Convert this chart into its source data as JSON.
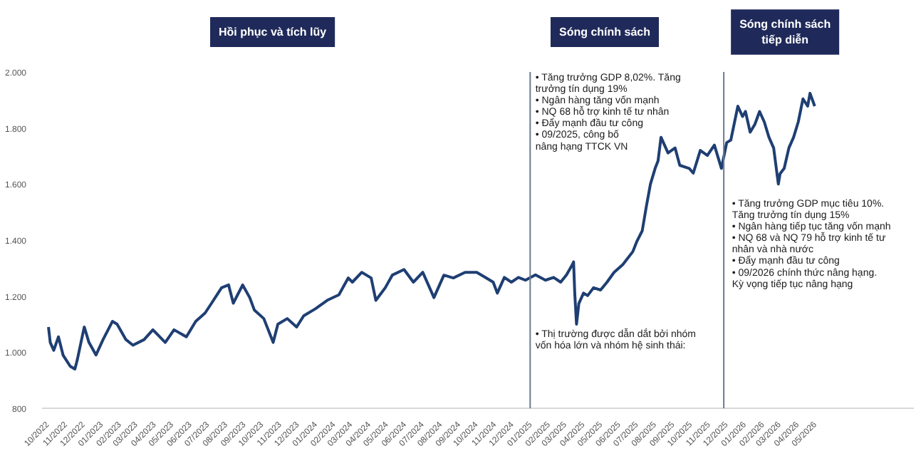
{
  "chart_data": {
    "type": "line",
    "x": [
      "2022-10-01",
      "2022-10-04",
      "2022-10-10",
      "2022-10-18",
      "2022-10-26",
      "2022-11-07",
      "2022-11-15",
      "2022-11-19",
      "2022-12-01",
      "2022-12-09",
      "2022-12-21",
      "2023-01-02",
      "2023-01-18",
      "2023-01-26",
      "2023-02-10",
      "2023-02-22",
      "2023-03-13",
      "2023-03-28",
      "2023-04-18",
      "2023-05-03",
      "2023-05-24",
      "2023-06-09",
      "2023-06-25",
      "2023-07-06",
      "2023-07-23",
      "2023-08-04",
      "2023-08-12",
      "2023-08-28",
      "2023-09-09",
      "2023-09-17",
      "2023-10-03",
      "2023-10-19",
      "2023-10-27",
      "2023-11-12",
      "2023-11-28",
      "2023-12-10",
      "2023-12-30",
      "2024-01-19",
      "2024-02-08",
      "2024-02-24",
      "2024-03-02",
      "2024-03-18",
      "2024-04-03",
      "2024-04-11",
      "2024-04-27",
      "2024-05-09",
      "2024-05-29",
      "2024-06-14",
      "2024-06-30",
      "2024-07-19",
      "2024-08-05",
      "2024-08-21",
      "2024-09-10",
      "2024-09-30",
      "2024-10-20",
      "2024-10-28",
      "2024-11-04",
      "2024-11-16",
      "2024-11-28",
      "2024-12-10",
      "2024-12-22",
      "2025-01-08",
      "2025-01-25",
      "2025-02-08",
      "2025-02-20",
      "2025-03-02",
      "2025-03-12",
      "2025-03-14",
      "2025-03-16",
      "2025-03-19",
      "2025-03-23",
      "2025-03-31",
      "2025-04-07",
      "2025-04-17",
      "2025-04-29",
      "2025-05-10",
      "2025-05-22",
      "2025-06-06",
      "2025-06-23",
      "2025-06-30",
      "2025-07-09",
      "2025-07-16",
      "2025-07-23",
      "2025-07-31",
      "2025-08-05",
      "2025-08-10",
      "2025-08-22",
      "2025-09-03",
      "2025-09-11",
      "2025-09-27",
      "2025-10-04",
      "2025-10-16",
      "2025-10-28",
      "2025-11-09",
      "2025-11-13",
      "2025-11-21",
      "2025-11-30",
      "2025-12-07",
      "2025-12-19",
      "2025-12-27",
      "2026-01-01",
      "2026-01-09",
      "2026-01-17",
      "2026-01-25",
      "2026-02-02",
      "2026-02-10",
      "2026-02-18",
      "2026-02-26",
      "2026-03-01",
      "2026-03-08",
      "2026-03-16",
      "2026-03-24",
      "2026-04-01",
      "2026-04-09",
      "2026-04-17",
      "2026-04-21",
      "2026-04-29"
    ],
    "series": [
      {
        "color": "#1f3f73",
        "values": [
          1090,
          1035,
          1007,
          1055,
          989,
          950,
          940,
          972,
          1090,
          1035,
          990,
          1045,
          1110,
          1100,
          1045,
          1025,
          1045,
          1080,
          1035,
          1080,
          1055,
          1110,
          1140,
          1175,
          1230,
          1240,
          1175,
          1240,
          1195,
          1150,
          1120,
          1035,
          1100,
          1120,
          1090,
          1130,
          1155,
          1185,
          1205,
          1265,
          1250,
          1285,
          1265,
          1185,
          1230,
          1275,
          1295,
          1250,
          1285,
          1195,
          1275,
          1265,
          1285,
          1285,
          1260,
          1250,
          1211,
          1267,
          1250,
          1267,
          1257,
          1276,
          1257,
          1267,
          1250,
          1276,
          1313,
          1322,
          1211,
          1100,
          1174,
          1211,
          1202,
          1230,
          1222,
          1250,
          1285,
          1313,
          1359,
          1396,
          1433,
          1520,
          1600,
          1656,
          1683,
          1767,
          1711,
          1729,
          1667,
          1656,
          1639,
          1720,
          1702,
          1739,
          1711,
          1656,
          1748,
          1757,
          1878,
          1841,
          1859,
          1785,
          1813,
          1859,
          1822,
          1767,
          1729,
          1600,
          1637,
          1656,
          1729,
          1767,
          1822,
          1904,
          1878,
          1924,
          1878
        ]
      }
    ],
    "xlim": [
      "2022-09-20",
      "2026-10-15"
    ],
    "xticks": [
      {
        "value": "2022-10-01",
        "label": "10/2022"
      },
      {
        "value": "2022-11-01",
        "label": "11/2022"
      },
      {
        "value": "2022-12-01",
        "label": "12/2022"
      },
      {
        "value": "2023-01-01",
        "label": "01/2023"
      },
      {
        "value": "2023-02-01",
        "label": "02/2023"
      },
      {
        "value": "2023-03-01",
        "label": "03/2023"
      },
      {
        "value": "2023-04-01",
        "label": "04/2023"
      },
      {
        "value": "2023-05-01",
        "label": "05/2023"
      },
      {
        "value": "2023-06-01",
        "label": "06/2023"
      },
      {
        "value": "2023-07-01",
        "label": "07/2023"
      },
      {
        "value": "2023-08-01",
        "label": "08/2023"
      },
      {
        "value": "2023-09-01",
        "label": "09/2023"
      },
      {
        "value": "2023-10-01",
        "label": "10/2023"
      },
      {
        "value": "2023-11-01",
        "label": "11/2023"
      },
      {
        "value": "2023-12-01",
        "label": "12/2023"
      },
      {
        "value": "2024-01-01",
        "label": "01/2024"
      },
      {
        "value": "2024-02-01",
        "label": "02/2024"
      },
      {
        "value": "2024-03-01",
        "label": "03/2024"
      },
      {
        "value": "2024-04-01",
        "label": "04/2024"
      },
      {
        "value": "2024-05-01",
        "label": "05/2024"
      },
      {
        "value": "2024-06-01",
        "label": "06/2024"
      },
      {
        "value": "2024-07-01",
        "label": "07/2024"
      },
      {
        "value": "2024-08-01",
        "label": "08/2024"
      },
      {
        "value": "2024-09-01",
        "label": "09/2024"
      },
      {
        "value": "2024-10-01",
        "label": "10/2024"
      },
      {
        "value": "2024-11-01",
        "label": "11/2024"
      },
      {
        "value": "2024-12-01",
        "label": "12/2024"
      },
      {
        "value": "2025-01-01",
        "label": "01/2025"
      },
      {
        "value": "2025-02-01",
        "label": "02/2025"
      },
      {
        "value": "2025-03-01",
        "label": "03/2025"
      },
      {
        "value": "2025-04-01",
        "label": "04/2025"
      },
      {
        "value": "2025-05-01",
        "label": "05/2025"
      },
      {
        "value": "2025-06-01",
        "label": "06/2025"
      },
      {
        "value": "2025-07-01",
        "label": "07/2025"
      },
      {
        "value": "2025-08-01",
        "label": "08/2025"
      },
      {
        "value": "2025-09-01",
        "label": "09/2025"
      },
      {
        "value": "2025-10-01",
        "label": "10/2025"
      },
      {
        "value": "2025-11-01",
        "label": "11/2025"
      },
      {
        "value": "2025-12-01",
        "label": "12/2025"
      },
      {
        "value": "2026-01-01",
        "label": "01/2026"
      },
      {
        "value": "2026-02-01",
        "label": "02/2026"
      },
      {
        "value": "2026-03-01",
        "label": "03/2026"
      },
      {
        "value": "2026-04-01",
        "label": "04/2026"
      },
      {
        "value": "2026-05-01",
        "label": "05/2026"
      }
    ],
    "ylim": [
      800,
      2000
    ],
    "yticks": [
      {
        "value": 800,
        "label": "800"
      },
      {
        "value": 1000,
        "label": "1.000"
      },
      {
        "value": 1200,
        "label": "1.200"
      },
      {
        "value": 1400,
        "label": "1.400"
      },
      {
        "value": 1600,
        "label": "1.600"
      },
      {
        "value": 1800,
        "label": "1.800"
      },
      {
        "value": 2000,
        "label": "2.000"
      }
    ],
    "ref_lines": [
      {
        "axis": "x",
        "value": "2024-12-30",
        "color": "#6b7b8c"
      },
      {
        "axis": "x",
        "value": "2025-11-25",
        "color": "#6b7b8c"
      }
    ],
    "annotations": [
      "Hồi phục và tích lũy",
      "Sóng chính sách",
      "Sóng chính sách\ntiếp diễn",
      "•  Tăng trưởng GDP 8,02%. Tăng\n    trưởng tín dụng 19%\n•  Ngân hàng tăng vốn mạnh\n•  NQ 68 hỗ trợ kinh tế tư nhân\n•  Đẩy mạnh đầu tư công\n•  09/2025, công bố\n    nâng hạng TTCK VN",
      "•  Thị trường được dẫn dắt bởi nhóm\n    vốn hóa lớn và nhóm hệ sinh thái:",
      "•  Tăng trưởng GDP mục tiêu 10%.\n    Tăng trưởng tín dụng 15%\n•  Ngân hàng tiếp tục tăng vốn mạnh\n•  NQ 68 và NQ 79 hỗ trợ kinh tế  tư\n    nhân và nhà nước\n•  Đẩy mạnh đầu tư công\n•  09/2026 chính thức nâng hạng.\n    Kỳ vọng tiếp tục nâng hạng"
    ],
    "grid": false
  }
}
